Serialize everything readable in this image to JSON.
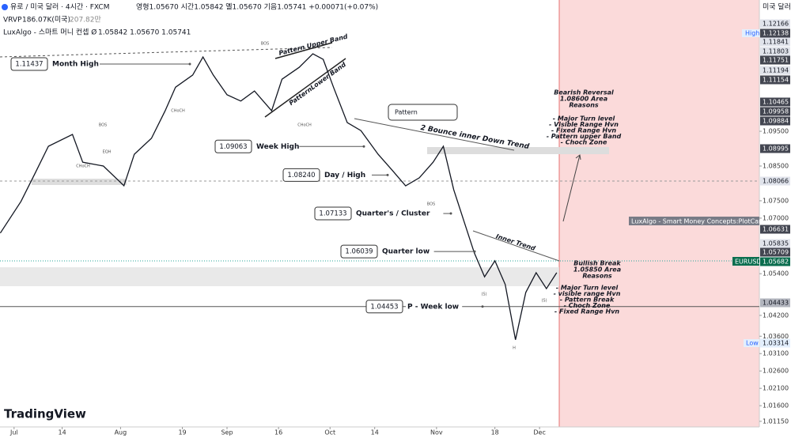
{
  "header": {
    "symbol": "유로 / 미국 달러 · 4시간 · FXCM",
    "ohlc": "영형1.05670 시간1.05842 옐1.05670 기음1.05741 +0.00071(+0.07%)",
    "vrvp": "VRVP",
    "vrvp_volume": "186.07K(미국)",
    "vrvp_total": "207.82만",
    "luxalgo": "LuxAlgo - 스마트 머니 컨셉 Ø",
    "luxalgo_values": "1.05842 1.05670 1.05741",
    "currency": "미국 달러",
    "brand": "TradingView"
  },
  "annotations": {
    "upper_band": "Pattern Upper Band",
    "lower_band": "PatternLower Band",
    "pattern": "Pattern",
    "bounce": "2 Bounce inner Down Trend",
    "inner_trend": "Inner Trend",
    "bearish_title": "Bearish Reversal",
    "bearish_area": "1.08600 Area",
    "bearish_reasons": "Reasons",
    "bearish_list": [
      "- Major Turn level",
      "- Visible Range Hvn",
      "- Fixed Range Hvn",
      "- Pattern upper Band",
      "- Choch Zone"
    ],
    "bullish_title": "Bullish Break",
    "bullish_area": "1.05850 Area",
    "bullish_reasons": "Reasons",
    "bullish_list": [
      "- Major Turn level",
      "- visible range Hvn",
      "- Pattern Break",
      "- Choch Zone",
      "- Fixed Range Hvn"
    ],
    "plot_candle": "LuxAlgo - Smart Money Concepts:PlotCandle",
    "symbol_tag": "EURUSD",
    "high": "High",
    "low": "Low"
  },
  "chart_data": {
    "type": "line",
    "color": "#131722",
    "x": [
      -4,
      2,
      6,
      10,
      17,
      20,
      26,
      32,
      35,
      40,
      44,
      47,
      52,
      55,
      58,
      62,
      66,
      70,
      75,
      78,
      83,
      87,
      90,
      93,
      97,
      101,
      106,
      110,
      114,
      118,
      122,
      125,
      128,
      131,
      134,
      137,
      140,
      143,
      146,
      149,
      152,
      155,
      158
    ],
    "values": [
      1.0657,
      1.0748,
      1.0827,
      1.0907,
      1.0941,
      1.0861,
      1.085,
      1.0793,
      1.0884,
      1.093,
      1.1009,
      1.1077,
      1.1112,
      1.1164,
      1.1112,
      1.1055,
      1.1037,
      1.1066,
      1.1009,
      1.11,
      1.1134,
      1.1173,
      1.1157,
      1.1077,
      1.0975,
      1.0952,
      1.0884,
      1.0839,
      1.0793,
      1.0816,
      1.0861,
      1.0907,
      1.0782,
      1.0691,
      1.06,
      1.0531,
      1.0577,
      1.0509,
      1.035,
      1.0486,
      1.0543,
      1.0497,
      1.0543
    ],
    "xlim": [
      -4.1,
      217
    ],
    "ylim": [
      1.0067,
      1.1328
    ],
    "xticks": [
      {
        "value": 0,
        "label": "Jul"
      },
      14,
      {
        "value": 31,
        "label": "Aug"
      },
      {
        "value": 49,
        "label": "19"
      },
      {
        "value": 62,
        "label": "Sep"
      },
      {
        "value": 77,
        "label": "16"
      },
      {
        "value": 92,
        "label": "Oct"
      },
      {
        "value": 105,
        "label": "14"
      },
      {
        "value": 123,
        "label": "Nov"
      },
      {
        "value": 140,
        "label": "18"
      },
      {
        "value": 153,
        "label": "Dec"
      }
    ],
    "yticks": [
      {
        "value": 1.095,
        "label": "1.09500"
      },
      {
        "value": 1.085,
        "label": "1.08500"
      },
      {
        "value": 1.075,
        "label": "1.07500"
      },
      {
        "value": 1.07,
        "label": "1.07000"
      },
      {
        "value": 1.054,
        "label": "1.05400"
      },
      {
        "value": 1.042,
        "label": "1.04200"
      },
      {
        "value": 1.036,
        "label": "1.03600"
      },
      {
        "value": 1.031,
        "label": "1.03100"
      },
      {
        "value": 1.026,
        "label": "1.02600"
      },
      {
        "value": 1.021,
        "label": "1.02100"
      },
      {
        "value": 1.016,
        "label": "1.01600"
      },
      {
        "value": 1.0115,
        "label": "1.01150"
      }
    ],
    "levels": [
      {
        "name": "Month High",
        "value": 1.11437,
        "label": "1.11437"
      },
      {
        "name": "Week High",
        "value": 1.09063,
        "label": "1.09063"
      },
      {
        "name": "Day / High",
        "value": 1.0824,
        "label": "1.08240"
      },
      {
        "name": "Quarter's / Cluster",
        "value": 1.07133,
        "label": "1.07133"
      },
      {
        "name": "Quarter low",
        "value": 1.06039,
        "label": "1.06039"
      },
      {
        "name": "P - Week low",
        "value": 1.04453,
        "label": "1.04453"
      }
    ],
    "price_labels": [
      {
        "value": 1.12166,
        "label": "1.12166",
        "color": "#e0e3eb"
      },
      {
        "value": 1.12138,
        "label": "1.12138",
        "color": "#434651"
      },
      {
        "value": 1.11841,
        "label": "1.11841",
        "color": "#e0e3eb"
      },
      {
        "value": 1.11803,
        "label": "1.11803",
        "color": "#e0e3eb"
      },
      {
        "value": 1.11751,
        "label": "1.11751",
        "color": "#434651"
      },
      {
        "value": 1.11194,
        "label": "1.11194",
        "color": "#e0e3eb"
      },
      {
        "value": 1.11154,
        "label": "1.11154",
        "color": "#434651"
      },
      {
        "value": 1.10465,
        "label": "1.10465",
        "color": "#434651"
      },
      {
        "value": 1.09958,
        "label": "1.09958",
        "color": "#434651"
      },
      {
        "value": 1.09884,
        "label": "1.09884",
        "color": "#434651"
      },
      {
        "value": 1.08995,
        "label": "1.08995",
        "color": "#434651"
      },
      {
        "value": 1.08066,
        "label": "1.08066",
        "color": "#e0e3eb"
      },
      {
        "value": 1.06631,
        "label": "1.06631",
        "color": "#434651"
      },
      {
        "value": 1.05835,
        "label": "1.05835",
        "color": "#e0e3eb"
      },
      {
        "value": 1.05709,
        "label": "1.05709",
        "color": "#434651"
      },
      {
        "value": 1.05682,
        "label": "1.05682",
        "color": "#0b6e4f"
      },
      {
        "value": 1.04433,
        "label": "1.04433",
        "color": "#b2b5be"
      },
      {
        "value": 1.03314,
        "label": "1.03314",
        "color": "#e3effd"
      }
    ],
    "structure_labels": [
      "BOS",
      "CHoCH",
      "BOS",
      "EQH",
      "CHoCH",
      "BOS",
      "CHoCH",
      "(S)",
      "(S)",
      "H"
    ]
  }
}
